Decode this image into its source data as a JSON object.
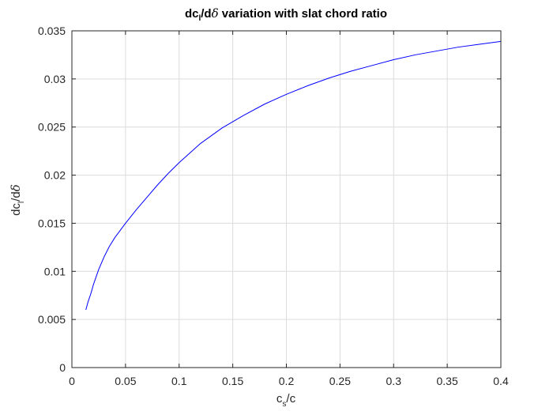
{
  "chart_data": {
    "type": "line",
    "title": {
      "parts": [
        "dc",
        "l",
        "/d",
        "δ",
        " variation with slat chord ratio"
      ]
    },
    "xlabel": {
      "main": "c",
      "sub": "s",
      "rest": "/c"
    },
    "ylabel": {
      "main": "dc",
      "sub": "l",
      "rest": "/d",
      "greek": "δ"
    },
    "xlim": [
      0,
      0.4
    ],
    "ylim": [
      0,
      0.035
    ],
    "xticks": [
      0,
      0.05,
      0.1,
      0.15,
      0.2,
      0.25,
      0.3,
      0.35,
      0.4
    ],
    "xtick_labels": [
      "0",
      "0.05",
      "0.1",
      "0.15",
      "0.2",
      "0.25",
      "0.3",
      "0.35",
      "0.4"
    ],
    "yticks": [
      0,
      0.005,
      0.01,
      0.015,
      0.02,
      0.025,
      0.03,
      0.035
    ],
    "ytick_labels": [
      "0",
      "0.005",
      "0.01",
      "0.015",
      "0.02",
      "0.025",
      "0.03",
      "0.035"
    ],
    "grid": true,
    "series": [
      {
        "color": "#0000ff",
        "x": [
          0.013,
          0.015,
          0.018,
          0.02,
          0.025,
          0.03,
          0.035,
          0.04,
          0.05,
          0.06,
          0.07,
          0.08,
          0.09,
          0.1,
          0.12,
          0.14,
          0.16,
          0.18,
          0.2,
          0.22,
          0.24,
          0.26,
          0.28,
          0.3,
          0.32,
          0.34,
          0.36,
          0.38,
          0.4
        ],
        "y": [
          0.006,
          0.0068,
          0.0078,
          0.0086,
          0.0102,
          0.0115,
          0.0126,
          0.0135,
          0.015,
          0.0164,
          0.0177,
          0.019,
          0.0202,
          0.0213,
          0.0233,
          0.0249,
          0.0262,
          0.0274,
          0.0284,
          0.0293,
          0.0301,
          0.0308,
          0.0314,
          0.032,
          0.0325,
          0.0329,
          0.0333,
          0.0336,
          0.0339
        ]
      }
    ]
  }
}
